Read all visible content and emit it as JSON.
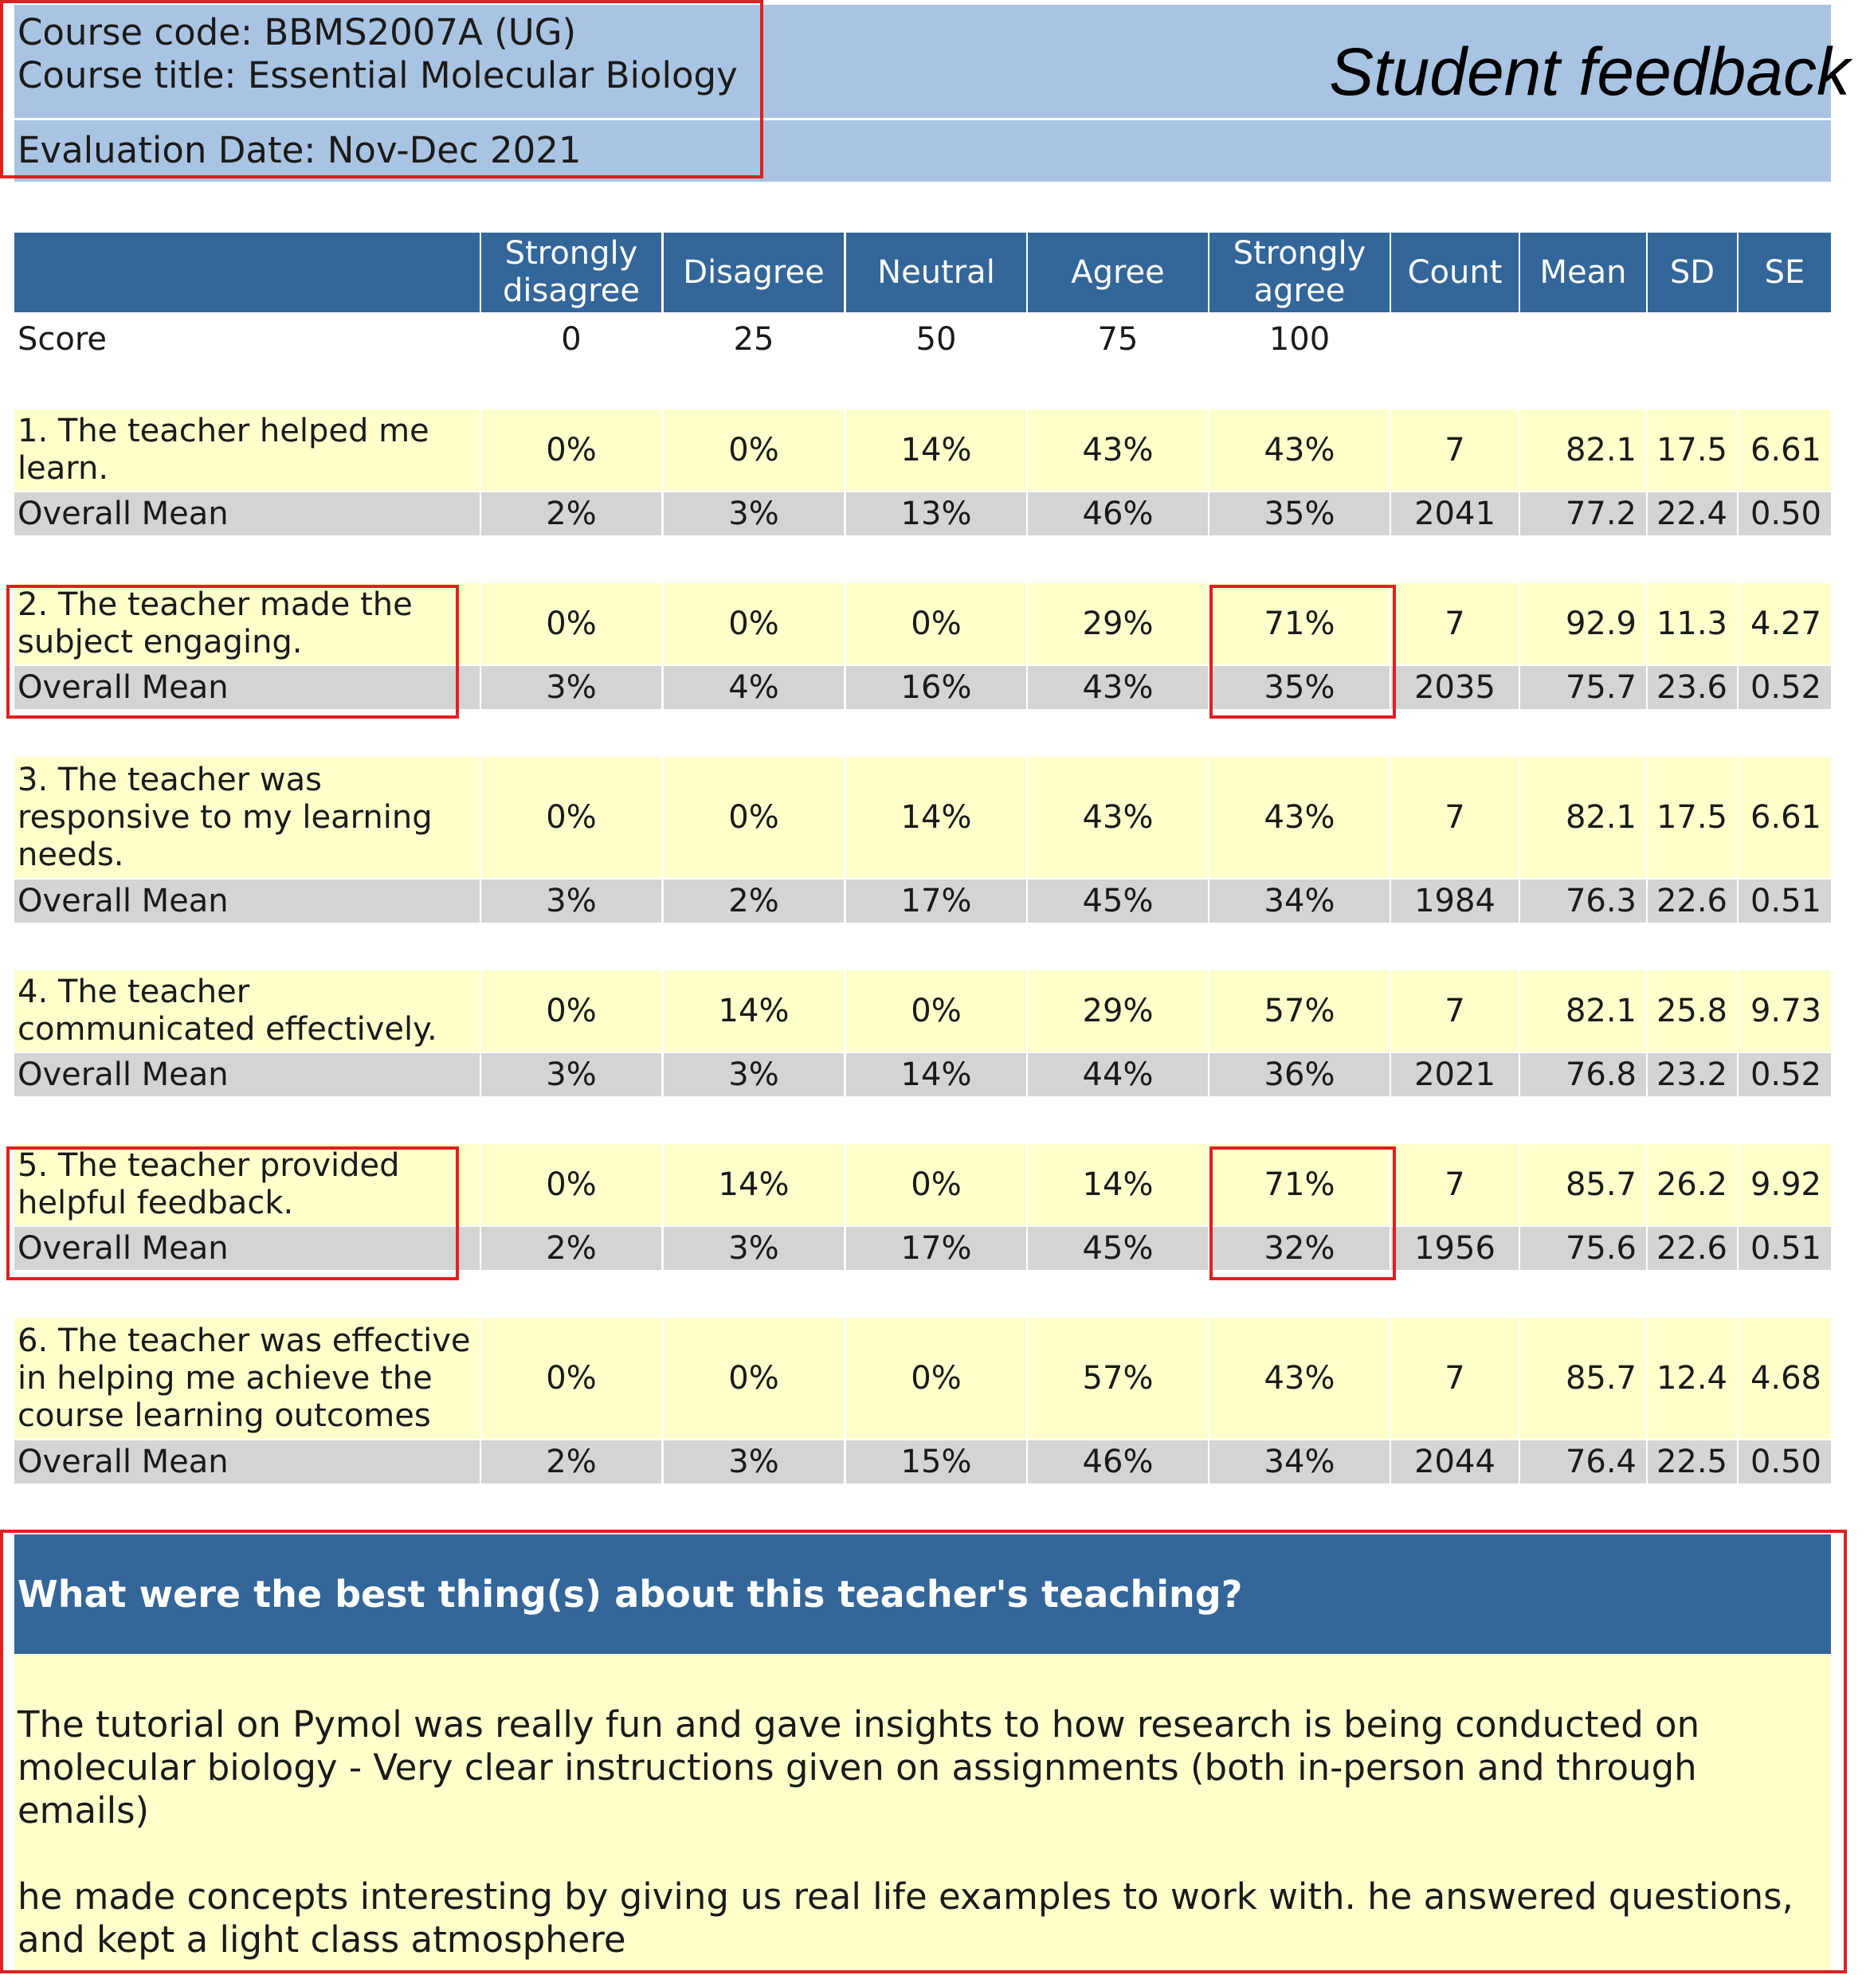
{
  "header": {
    "course_code": "Course code: BBMS2007A (UG)",
    "course_title": "Course title: Essential Molecular Biology",
    "evaluation_date": "Evaluation Date: Nov-Dec 2021",
    "title": "Student feedback"
  },
  "table": {
    "columns": [
      "Strongly disagree",
      "Disagree",
      "Neutral",
      "Agree",
      "Strongly agree",
      "Count",
      "Mean",
      "SD",
      "SE"
    ],
    "score_label": "Score",
    "scores": [
      "0",
      "25",
      "50",
      "75",
      "100"
    ],
    "questions": [
      {
        "label": "1. The teacher helped me learn.",
        "values": [
          "0%",
          "0%",
          "14%",
          "43%",
          "43%",
          "7",
          "82.1",
          "17.5",
          "6.61"
        ],
        "overall_label": "Overall Mean",
        "overall": [
          "2%",
          "3%",
          "13%",
          "46%",
          "35%",
          "2041",
          "77.2",
          "22.4",
          "0.50"
        ]
      },
      {
        "label": "2. The teacher made the subject engaging.",
        "values": [
          "0%",
          "0%",
          "0%",
          "29%",
          "71%",
          "7",
          "92.9",
          "11.3",
          "4.27"
        ],
        "overall_label": "Overall Mean",
        "overall": [
          "3%",
          "4%",
          "16%",
          "43%",
          "35%",
          "2035",
          "75.7",
          "23.6",
          "0.52"
        ]
      },
      {
        "label": "3. The teacher was responsive to my learning needs.",
        "values": [
          "0%",
          "0%",
          "14%",
          "43%",
          "43%",
          "7",
          "82.1",
          "17.5",
          "6.61"
        ],
        "overall_label": "Overall Mean",
        "overall": [
          "3%",
          "2%",
          "17%",
          "45%",
          "34%",
          "1984",
          "76.3",
          "22.6",
          "0.51"
        ]
      },
      {
        "label": "4. The teacher communicated effectively.",
        "values": [
          "0%",
          "14%",
          "0%",
          "29%",
          "57%",
          "7",
          "82.1",
          "25.8",
          "9.73"
        ],
        "overall_label": "Overall Mean",
        "overall": [
          "3%",
          "3%",
          "14%",
          "44%",
          "36%",
          "2021",
          "76.8",
          "23.2",
          "0.52"
        ]
      },
      {
        "label": "5. The teacher provided helpful feedback.",
        "values": [
          "0%",
          "14%",
          "0%",
          "14%",
          "71%",
          "7",
          "85.7",
          "26.2",
          "9.92"
        ],
        "overall_label": "Overall Mean",
        "overall": [
          "2%",
          "3%",
          "17%",
          "45%",
          "32%",
          "1956",
          "75.6",
          "22.6",
          "0.51"
        ]
      },
      {
        "label": "6. The teacher was effective in helping me achieve the course learning outcomes",
        "values": [
          "0%",
          "0%",
          "0%",
          "57%",
          "43%",
          "7",
          "85.7",
          "12.4",
          "4.68"
        ],
        "overall_label": "Overall Mean",
        "overall": [
          "2%",
          "3%",
          "15%",
          "46%",
          "34%",
          "2044",
          "76.4",
          "22.5",
          "0.50"
        ]
      }
    ]
  },
  "comments": {
    "question": "What were the best thing(s) about this teacher's teaching?",
    "items": [
      "The tutorial on Pymol was really fun and gave insights to how research is being conducted on molecular biology - Very clear instructions given on assignments (both in-person and through emails)",
      "he made concepts interesting by giving us real life examples to work with. he answered questions, and kept a light class atmosphere"
    ]
  },
  "colors": {
    "header_bg": "#a9c4e2",
    "table_header_bg": "#336699",
    "question_row_bg": "#ffffcc",
    "overall_row_bg": "#d4d4d4",
    "highlight_border": "#e02020"
  }
}
